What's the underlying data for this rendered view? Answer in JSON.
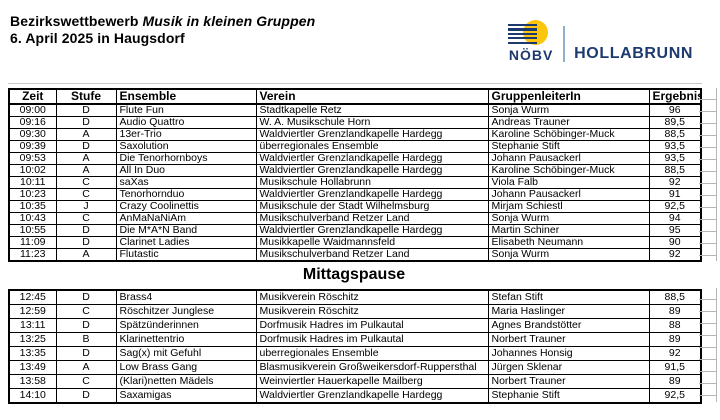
{
  "header": {
    "title_prefix": "Bezirkswettbewerb ",
    "title_italic": "Musik in kleinen Gruppen",
    "subtitle": "6. April 2025 in Haugsdorf"
  },
  "logo": {
    "org": "NÖBV",
    "region": "HOLLABRUNN",
    "colors": {
      "navy": "#1d3a6e",
      "sun_yellow": "#fcc50e",
      "separator": "#8fafd0"
    }
  },
  "table": {
    "columns": [
      "Zeit",
      "Stufe",
      "Ensemble",
      "Verein",
      "GruppenleiterIn",
      "Ergebnis"
    ],
    "break_label": "Mittagspause",
    "morning_rows": [
      [
        "09:00",
        "D",
        "Flute Fun",
        "Stadtkapelle Retz",
        "Sonja Wurm",
        "96"
      ],
      [
        "09:16",
        "D",
        "Audio Quattro",
        "W. A. Musikschule Horn",
        "Andreas Trauner",
        "89,5"
      ],
      [
        "09:30",
        "A",
        "13er-Trio",
        "Waldviertler Grenzlandkapelle Hardegg",
        "Karoline Schöbinger-Muck",
        "88,5"
      ],
      [
        "09:39",
        "D",
        "Saxolution",
        "überregionales Ensemble",
        "Stephanie Stift",
        "93,5"
      ],
      [
        "09:53",
        "A",
        "Die Tenorhornboys",
        "Waldviertler Grenzlandkapelle Hardegg",
        "Johann Pausackerl",
        "93,5"
      ],
      [
        "10:02",
        "A",
        "All In Duo",
        "Waldviertler Grenzlandkapelle Hardegg",
        "Karoline Schöbinger-Muck",
        "88,5"
      ],
      [
        "10:11",
        "C",
        "saXas",
        "Musikschule Hollabrunn",
        "Viola Falb",
        "92"
      ],
      [
        "10:23",
        "C",
        "Tenorhornduo",
        "Waldviertler Grenzlandkapelle Hardegg",
        "Johann Pausackerl",
        "91"
      ],
      [
        "10:35",
        "J",
        "Crazy Coolinettis",
        "Musikschule der Stadt Wilhelmsburg",
        "Mirjam Schiestl",
        "92,5"
      ],
      [
        "10:43",
        "C",
        "AnMaNaNiAm",
        "Musikschulverband Retzer Land",
        "Sonja Wurm",
        "94"
      ],
      [
        "10:55",
        "D",
        "Die M*A*N Band",
        "Waldviertler Grenzlandkapelle Hardegg",
        "Martin Schiner",
        "95"
      ],
      [
        "11:09",
        "D",
        "Clarinet Ladies",
        "Musikkapelle Waidmannsfeld",
        "Elisabeth Neumann",
        "90"
      ],
      [
        "11:23",
        "A",
        "Flutastic",
        "Musikschulverband Retzer Land",
        "Sonja Wurm",
        "92"
      ]
    ],
    "afternoon_rows": [
      [
        "12:45",
        "D",
        "Brass4",
        "Musikverein Röschitz",
        "Stefan Stift",
        "88,5"
      ],
      [
        "12:59",
        "C",
        "Röschitzer Junglese",
        "Musikverein Röschitz",
        "Maria Haslinger",
        "89"
      ],
      [
        "13:11",
        "D",
        "Spätzünderinnen",
        "Dorfmusik Hadres im Pulkautal",
        "Agnes Brandstötter",
        "88"
      ],
      [
        "13:25",
        "B",
        "Klarinettentrio",
        "Dorfmusik Hadres im Pulkautal",
        "Norbert Trauner",
        "89"
      ],
      [
        "13:35",
        "D",
        "Sag(x) mit Gefuhl",
        "uberregionales Ensemble",
        "Johannes Honsig",
        "92"
      ],
      [
        "13:49",
        "A",
        "Low Brass Gang",
        "Blasmusikverein Großweikersdorf-Ruppersthal",
        "Jürgen Sklenar",
        "91,5"
      ],
      [
        "13:58",
        "C",
        "(Klari)netten Mädels",
        "Weinviertler Hauerkapelle Mailberg",
        "Norbert Trauner",
        "89"
      ],
      [
        "14:10",
        "D",
        "Saxamigas",
        "Waldviertler Grenzlandkapelle Hardegg",
        "Stephanie Stift",
        "92,5"
      ]
    ]
  }
}
